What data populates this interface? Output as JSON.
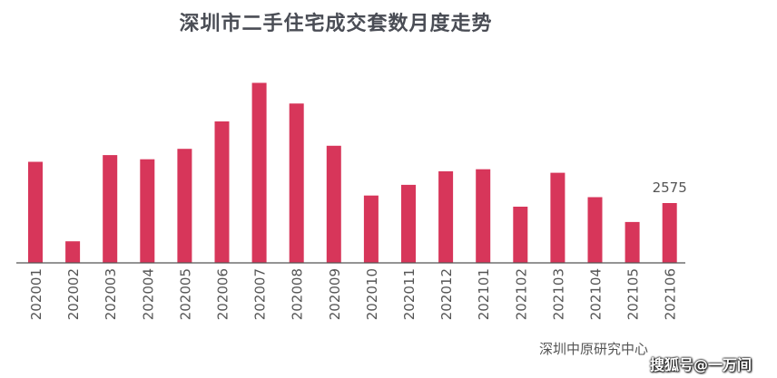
{
  "title": "深圳市二手住宅成交套数月度走势",
  "source": "深圳中原研究中心",
  "watermark": "搜狐号@一万间",
  "colors": {
    "bar": "#d7365a",
    "axis": "#555555",
    "title": "#4a4d55",
    "label": "#555555"
  },
  "chart_data": {
    "type": "bar",
    "title": "深圳市二手住宅成交套数月度走势",
    "xlabel": "",
    "ylabel": "",
    "grid": false,
    "legend": "none",
    "ylim": [
      0,
      8000
    ],
    "categories": [
      "202001",
      "202002",
      "202003",
      "202004",
      "202005",
      "202006",
      "202007",
      "202008",
      "202009",
      "202010",
      "202011",
      "202012",
      "202101",
      "202102",
      "202103",
      "202104",
      "202105",
      "202106"
    ],
    "values": [
      4350,
      930,
      4640,
      4460,
      4910,
      6090,
      7750,
      6860,
      5040,
      2900,
      3360,
      3940,
      4030,
      2420,
      3880,
      2830,
      1760,
      2575
    ],
    "data_labels": [
      {
        "category": "202106",
        "text": "2575"
      }
    ]
  }
}
